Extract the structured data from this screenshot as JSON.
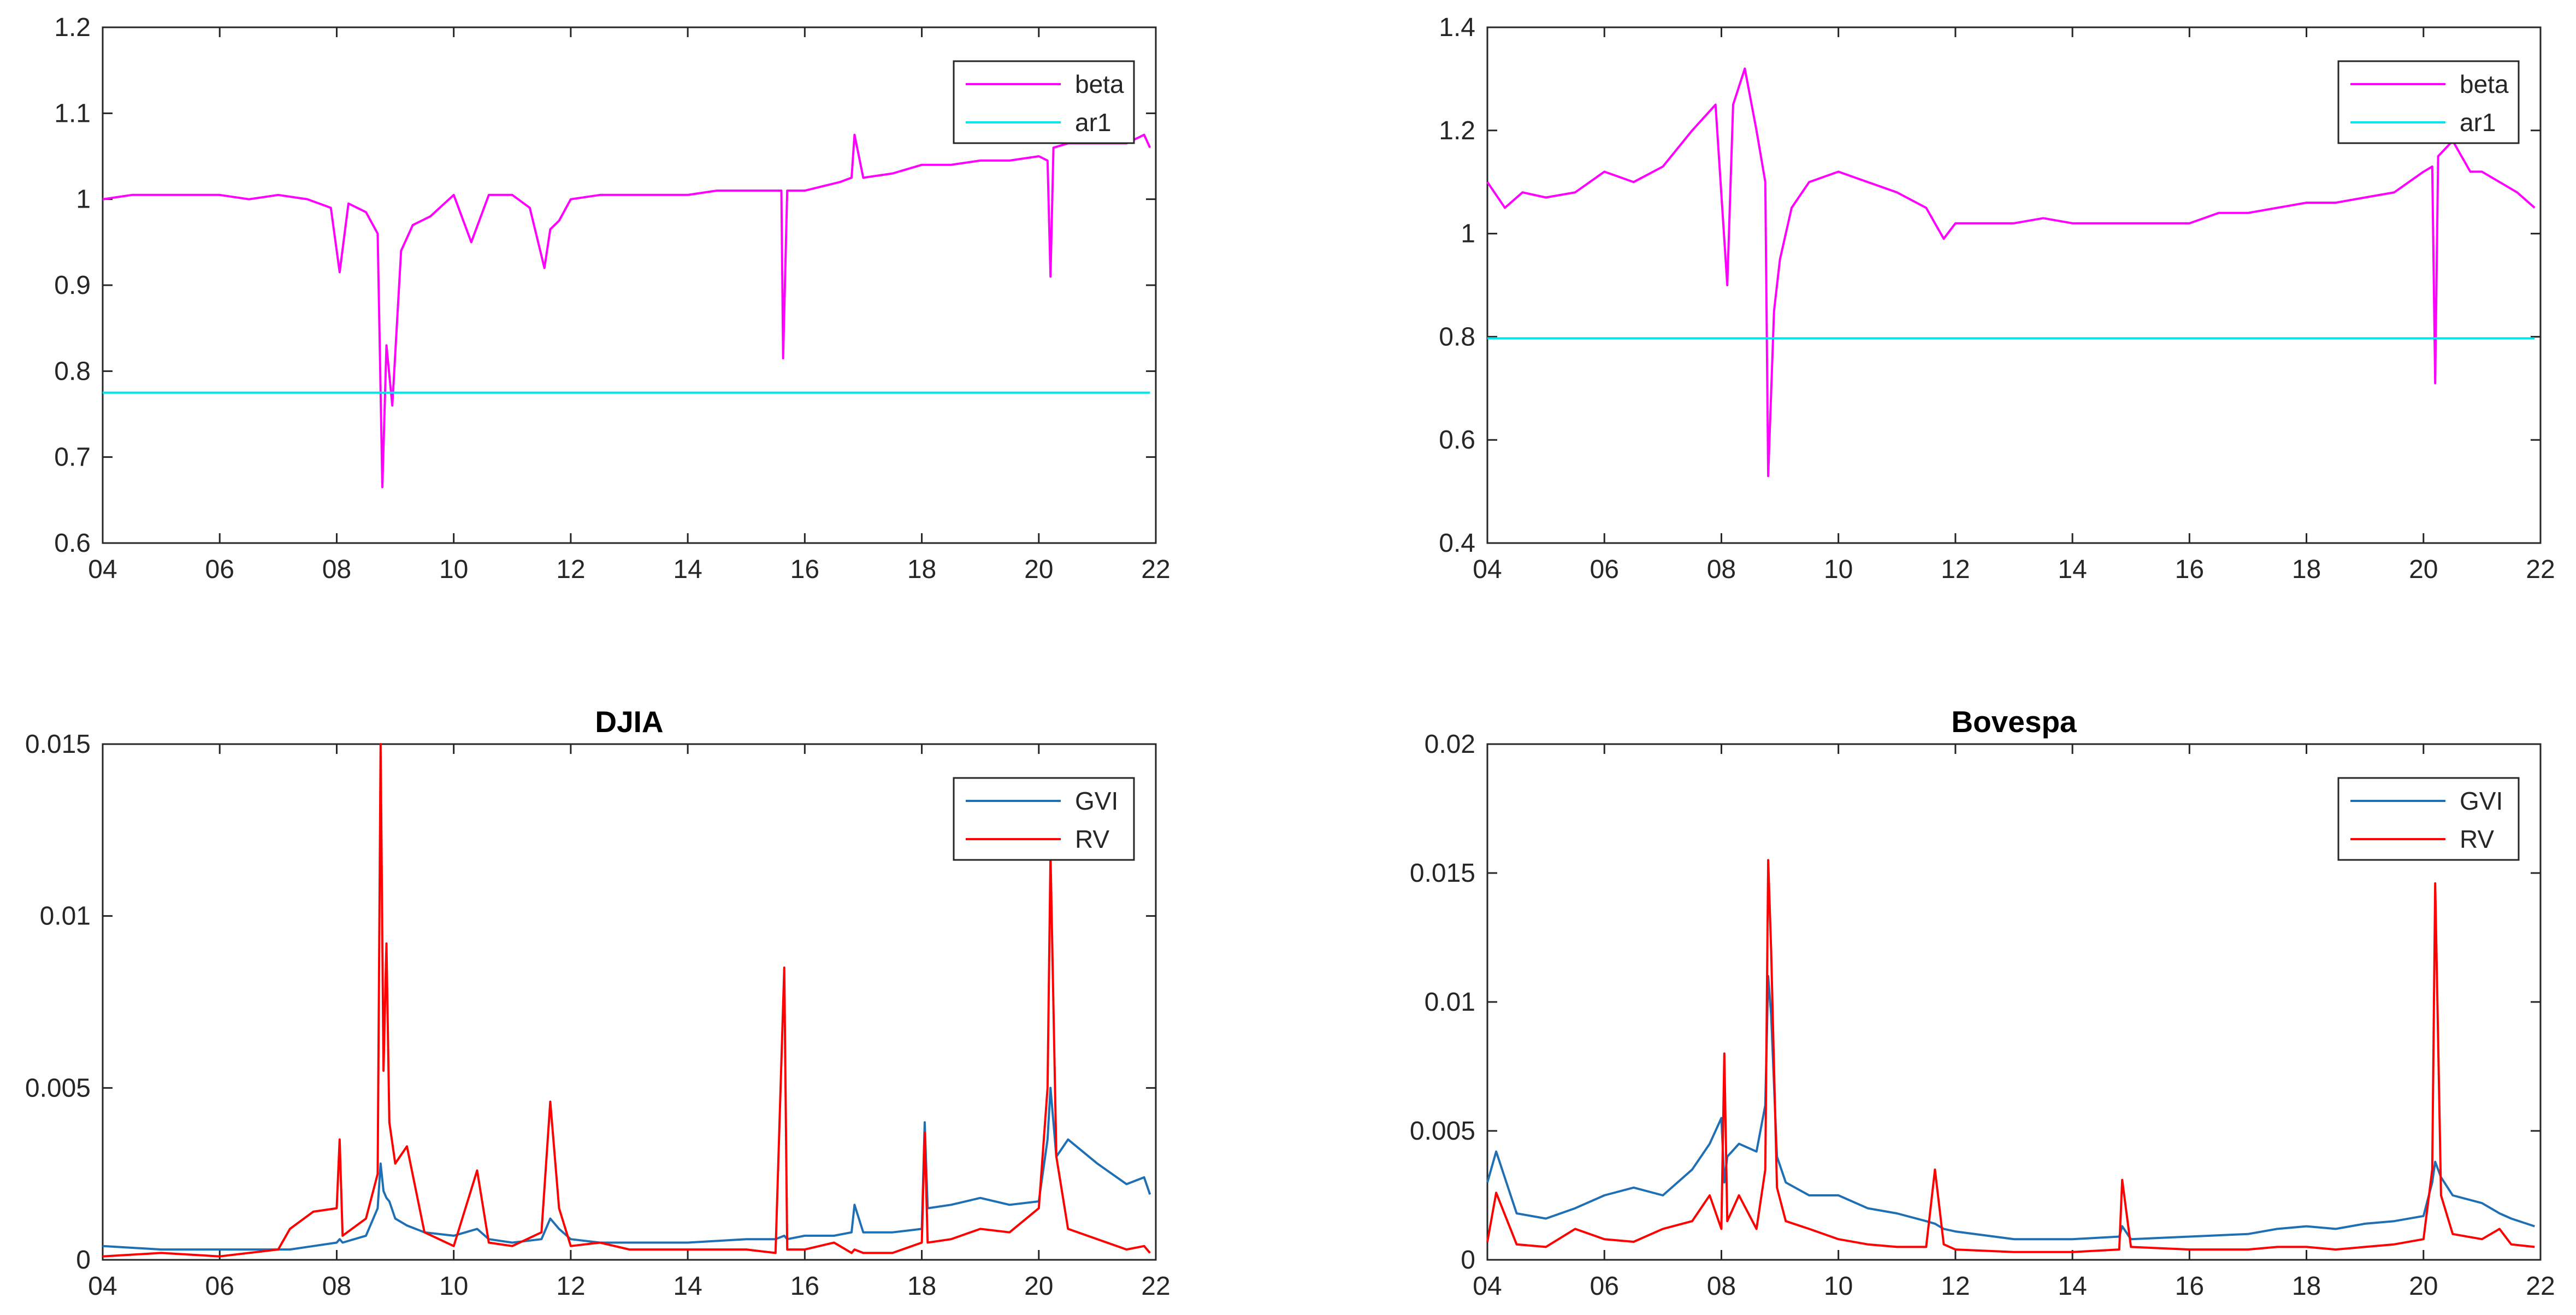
{
  "chart_data": [
    {
      "type": "line",
      "title": "",
      "xlabel": "",
      "ylabel": "",
      "xlim": [
        4,
        22
      ],
      "ylim": [
        0.6,
        1.2
      ],
      "xticks": [
        4,
        6,
        8,
        10,
        12,
        14,
        16,
        18,
        20,
        22
      ],
      "xtick_labels": [
        "04",
        "06",
        "08",
        "10",
        "12",
        "14",
        "16",
        "18",
        "20",
        "22"
      ],
      "yticks": [
        0.6,
        0.7,
        0.8,
        0.9,
        1.0,
        1.1,
        1.2
      ],
      "ytick_labels": [
        "0.6",
        "0.7",
        "0.8",
        "0.9",
        "1",
        "1.1",
        "1.2"
      ],
      "legend_position": "top-right",
      "x": [
        4.0,
        4.5,
        5.0,
        5.5,
        6.0,
        6.5,
        7.0,
        7.5,
        7.9,
        8.05,
        8.2,
        8.5,
        8.7,
        8.78,
        8.85,
        8.95,
        9.1,
        9.3,
        9.6,
        10.0,
        10.3,
        10.6,
        11.0,
        11.3,
        11.55,
        11.65,
        11.8,
        12.0,
        12.5,
        13.0,
        13.5,
        14.0,
        14.5,
        15.0,
        15.4,
        15.6,
        15.63,
        15.7,
        16.0,
        16.3,
        16.6,
        16.8,
        16.85,
        17.0,
        17.5,
        18.0,
        18.2,
        18.5,
        19.0,
        19.5,
        20.0,
        20.15,
        20.2,
        20.25,
        20.5,
        21.0,
        21.5,
        21.8,
        21.9
      ],
      "series": [
        {
          "name": "beta",
          "color": "#ff00ff",
          "values": [
            1.0,
            1.005,
            1.005,
            1.005,
            1.005,
            1.0,
            1.005,
            1.0,
            0.99,
            0.915,
            0.995,
            0.985,
            0.96,
            0.665,
            0.83,
            0.76,
            0.94,
            0.97,
            0.98,
            1.005,
            0.95,
            1.005,
            1.005,
            0.99,
            0.92,
            0.965,
            0.975,
            1.0,
            1.005,
            1.005,
            1.005,
            1.005,
            1.01,
            1.01,
            1.01,
            1.01,
            0.815,
            1.01,
            1.01,
            1.015,
            1.02,
            1.025,
            1.075,
            1.025,
            1.03,
            1.04,
            1.04,
            1.04,
            1.045,
            1.045,
            1.05,
            1.045,
            0.91,
            1.06,
            1.065,
            1.065,
            1.065,
            1.075,
            1.06
          ]
        },
        {
          "name": "ar1",
          "color": "#00e5ee",
          "values": [
            0.775,
            0.775,
            0.775,
            0.775,
            0.775,
            0.775,
            0.775,
            0.775,
            0.775,
            0.775,
            0.775,
            0.775,
            0.775,
            0.775,
            0.775,
            0.775,
            0.775,
            0.775,
            0.775,
            0.775,
            0.775,
            0.775,
            0.775,
            0.775,
            0.775,
            0.775,
            0.775,
            0.775,
            0.775,
            0.775,
            0.775,
            0.775,
            0.775,
            0.775,
            0.775,
            0.775,
            0.775,
            0.775,
            0.775,
            0.775,
            0.775,
            0.775,
            0.775,
            0.775,
            0.775,
            0.775,
            0.775,
            0.775,
            0.775,
            0.775,
            0.775,
            0.775,
            0.775,
            0.775,
            0.775,
            0.775,
            0.775,
            0.775,
            0.775
          ]
        }
      ]
    },
    {
      "type": "line",
      "title": "",
      "xlabel": "",
      "ylabel": "",
      "xlim": [
        4,
        22
      ],
      "ylim": [
        0.4,
        1.4
      ],
      "xticks": [
        4,
        6,
        8,
        10,
        12,
        14,
        16,
        18,
        20,
        22
      ],
      "xtick_labels": [
        "04",
        "06",
        "08",
        "10",
        "12",
        "14",
        "16",
        "18",
        "20",
        "22"
      ],
      "yticks": [
        0.4,
        0.6,
        0.8,
        1.0,
        1.2,
        1.4
      ],
      "ytick_labels": [
        "0.4",
        "0.6",
        "0.8",
        "1",
        "1.2",
        "1.4"
      ],
      "legend_position": "top-right",
      "x": [
        4.0,
        4.3,
        4.6,
        5.0,
        5.5,
        6.0,
        6.5,
        7.0,
        7.5,
        7.9,
        8.1,
        8.2,
        8.4,
        8.6,
        8.75,
        8.8,
        8.9,
        9.0,
        9.2,
        9.5,
        10.0,
        10.5,
        11.0,
        11.5,
        11.8,
        12.0,
        12.5,
        13.0,
        13.5,
        14.0,
        14.5,
        15.0,
        15.5,
        16.0,
        16.5,
        17.0,
        17.5,
        18.0,
        18.5,
        19.0,
        19.5,
        20.0,
        20.15,
        20.2,
        20.25,
        20.5,
        20.8,
        21.0,
        21.3,
        21.6,
        21.9
      ],
      "series": [
        {
          "name": "beta",
          "color": "#ff00ff",
          "values": [
            1.1,
            1.05,
            1.08,
            1.07,
            1.08,
            1.12,
            1.1,
            1.13,
            1.2,
            1.25,
            0.9,
            1.25,
            1.32,
            1.2,
            1.1,
            0.53,
            0.85,
            0.95,
            1.05,
            1.1,
            1.12,
            1.1,
            1.08,
            1.05,
            0.99,
            1.02,
            1.02,
            1.02,
            1.03,
            1.02,
            1.02,
            1.02,
            1.02,
            1.02,
            1.04,
            1.04,
            1.05,
            1.06,
            1.06,
            1.07,
            1.08,
            1.12,
            1.13,
            0.71,
            1.15,
            1.18,
            1.12,
            1.12,
            1.1,
            1.08,
            1.05
          ]
        },
        {
          "name": "ar1",
          "color": "#00e5ee",
          "values": [
            0.797,
            0.797,
            0.797,
            0.797,
            0.797,
            0.797,
            0.797,
            0.797,
            0.797,
            0.797,
            0.797,
            0.797,
            0.797,
            0.797,
            0.797,
            0.797,
            0.797,
            0.797,
            0.797,
            0.797,
            0.797,
            0.797,
            0.797,
            0.797,
            0.797,
            0.797,
            0.797,
            0.797,
            0.797,
            0.797,
            0.797,
            0.797,
            0.797,
            0.797,
            0.797,
            0.797,
            0.797,
            0.797,
            0.797,
            0.797,
            0.797,
            0.797,
            0.797,
            0.797,
            0.797,
            0.797,
            0.797,
            0.797,
            0.797,
            0.797,
            0.797
          ]
        }
      ]
    },
    {
      "type": "line",
      "title": "DJIA",
      "xlabel": "",
      "ylabel": "",
      "xlim": [
        4,
        22
      ],
      "ylim": [
        0,
        0.015
      ],
      "xticks": [
        4,
        6,
        8,
        10,
        12,
        14,
        16,
        18,
        20,
        22
      ],
      "xtick_labels": [
        "04",
        "06",
        "08",
        "10",
        "12",
        "14",
        "16",
        "18",
        "20",
        "22"
      ],
      "yticks": [
        0,
        0.005,
        0.01,
        0.015
      ],
      "ytick_labels": [
        "0",
        "0.005",
        "0.01",
        "0.015"
      ],
      "legend_position": "top-right",
      "x": [
        4.0,
        5.0,
        6.0,
        7.0,
        7.2,
        7.6,
        8.0,
        8.05,
        8.1,
        8.5,
        8.7,
        8.75,
        8.8,
        8.85,
        8.9,
        9.0,
        9.2,
        9.5,
        10.0,
        10.4,
        10.6,
        11.0,
        11.5,
        11.65,
        11.8,
        12.0,
        12.5,
        13.0,
        14.0,
        15.0,
        15.5,
        15.65,
        15.7,
        16.0,
        16.5,
        16.8,
        16.85,
        17.0,
        17.5,
        18.0,
        18.05,
        18.1,
        18.5,
        19.0,
        19.5,
        20.0,
        20.15,
        20.2,
        20.3,
        20.5,
        21.0,
        21.5,
        21.8,
        21.9
      ],
      "series": [
        {
          "name": "GVI",
          "color": "#1f6fb4",
          "values": [
            0.0004,
            0.0003,
            0.0003,
            0.0003,
            0.0003,
            0.0004,
            0.0005,
            0.0006,
            0.0005,
            0.0007,
            0.0015,
            0.0028,
            0.002,
            0.0018,
            0.0017,
            0.0012,
            0.001,
            0.0008,
            0.0007,
            0.0009,
            0.0006,
            0.0005,
            0.0006,
            0.0012,
            0.0009,
            0.0006,
            0.0005,
            0.0005,
            0.0005,
            0.0006,
            0.0006,
            0.0007,
            0.0006,
            0.0007,
            0.0007,
            0.0008,
            0.0016,
            0.0008,
            0.0008,
            0.0009,
            0.004,
            0.0015,
            0.0016,
            0.0018,
            0.0016,
            0.0017,
            0.0035,
            0.005,
            0.003,
            0.0035,
            0.0028,
            0.0022,
            0.0024,
            0.0019
          ]
        },
        {
          "name": "RV",
          "color": "#ff0000",
          "values": [
            0.0001,
            0.0002,
            0.0001,
            0.0003,
            0.0009,
            0.0014,
            0.0015,
            0.0035,
            0.0007,
            0.0012,
            0.0025,
            0.015,
            0.0055,
            0.0092,
            0.004,
            0.0028,
            0.0033,
            0.0008,
            0.0004,
            0.0026,
            0.0005,
            0.0004,
            0.0008,
            0.0046,
            0.0015,
            0.0004,
            0.0005,
            0.0003,
            0.0003,
            0.0003,
            0.0002,
            0.0085,
            0.0003,
            0.0003,
            0.0005,
            0.0002,
            0.0003,
            0.0002,
            0.0002,
            0.0005,
            0.0037,
            0.0005,
            0.0006,
            0.0009,
            0.0008,
            0.0015,
            0.005,
            0.0118,
            0.003,
            0.0009,
            0.0006,
            0.0003,
            0.0004,
            0.0002
          ]
        }
      ]
    },
    {
      "type": "line",
      "title": "Bovespa",
      "xlabel": "",
      "ylabel": "",
      "xlim": [
        4,
        22
      ],
      "ylim": [
        0,
        0.02
      ],
      "xticks": [
        4,
        6,
        8,
        10,
        12,
        14,
        16,
        18,
        20,
        22
      ],
      "xtick_labels": [
        "04",
        "06",
        "08",
        "10",
        "12",
        "14",
        "16",
        "18",
        "20",
        "22"
      ],
      "yticks": [
        0,
        0.005,
        0.01,
        0.015,
        0.02
      ],
      "ytick_labels": [
        "0",
        "0.005",
        "0.01",
        "0.015",
        "0.02"
      ],
      "legend_position": "top-right",
      "x": [
        4.0,
        4.15,
        4.5,
        5.0,
        5.5,
        6.0,
        6.5,
        7.0,
        7.5,
        7.8,
        8.0,
        8.05,
        8.1,
        8.3,
        8.6,
        8.75,
        8.8,
        8.85,
        8.95,
        9.1,
        9.5,
        10.0,
        10.5,
        11.0,
        11.5,
        11.65,
        11.8,
        12.0,
        13.0,
        14.0,
        14.8,
        14.85,
        15.0,
        16.0,
        17.0,
        17.5,
        18.0,
        18.5,
        19.0,
        19.5,
        20.0,
        20.15,
        20.2,
        20.3,
        20.5,
        21.0,
        21.3,
        21.5,
        21.9
      ],
      "series": [
        {
          "name": "GVI",
          "color": "#1f6fb4",
          "values": [
            0.003,
            0.0042,
            0.0018,
            0.0016,
            0.002,
            0.0025,
            0.0028,
            0.0025,
            0.0035,
            0.0045,
            0.0055,
            0.003,
            0.004,
            0.0045,
            0.0042,
            0.006,
            0.011,
            0.0095,
            0.004,
            0.003,
            0.0025,
            0.0025,
            0.002,
            0.0018,
            0.0015,
            0.0014,
            0.0012,
            0.0011,
            0.0008,
            0.0008,
            0.0009,
            0.0013,
            0.0008,
            0.0009,
            0.001,
            0.0012,
            0.0013,
            0.0012,
            0.0014,
            0.0015,
            0.0017,
            0.003,
            0.0038,
            0.0032,
            0.0025,
            0.0022,
            0.0018,
            0.0016,
            0.0013
          ]
        },
        {
          "name": "RV",
          "color": "#ff0000",
          "values": [
            0.0007,
            0.0026,
            0.0006,
            0.0005,
            0.0012,
            0.0008,
            0.0007,
            0.0012,
            0.0015,
            0.0025,
            0.0012,
            0.008,
            0.0015,
            0.0025,
            0.0012,
            0.0035,
            0.0155,
            0.012,
            0.0028,
            0.0015,
            0.0012,
            0.0008,
            0.0006,
            0.0005,
            0.0005,
            0.0035,
            0.0006,
            0.0004,
            0.0003,
            0.0003,
            0.0004,
            0.0031,
            0.0005,
            0.0004,
            0.0004,
            0.0005,
            0.0005,
            0.0004,
            0.0005,
            0.0006,
            0.0008,
            0.0035,
            0.0146,
            0.0025,
            0.001,
            0.0008,
            0.0012,
            0.0006,
            0.0005
          ]
        }
      ]
    }
  ]
}
